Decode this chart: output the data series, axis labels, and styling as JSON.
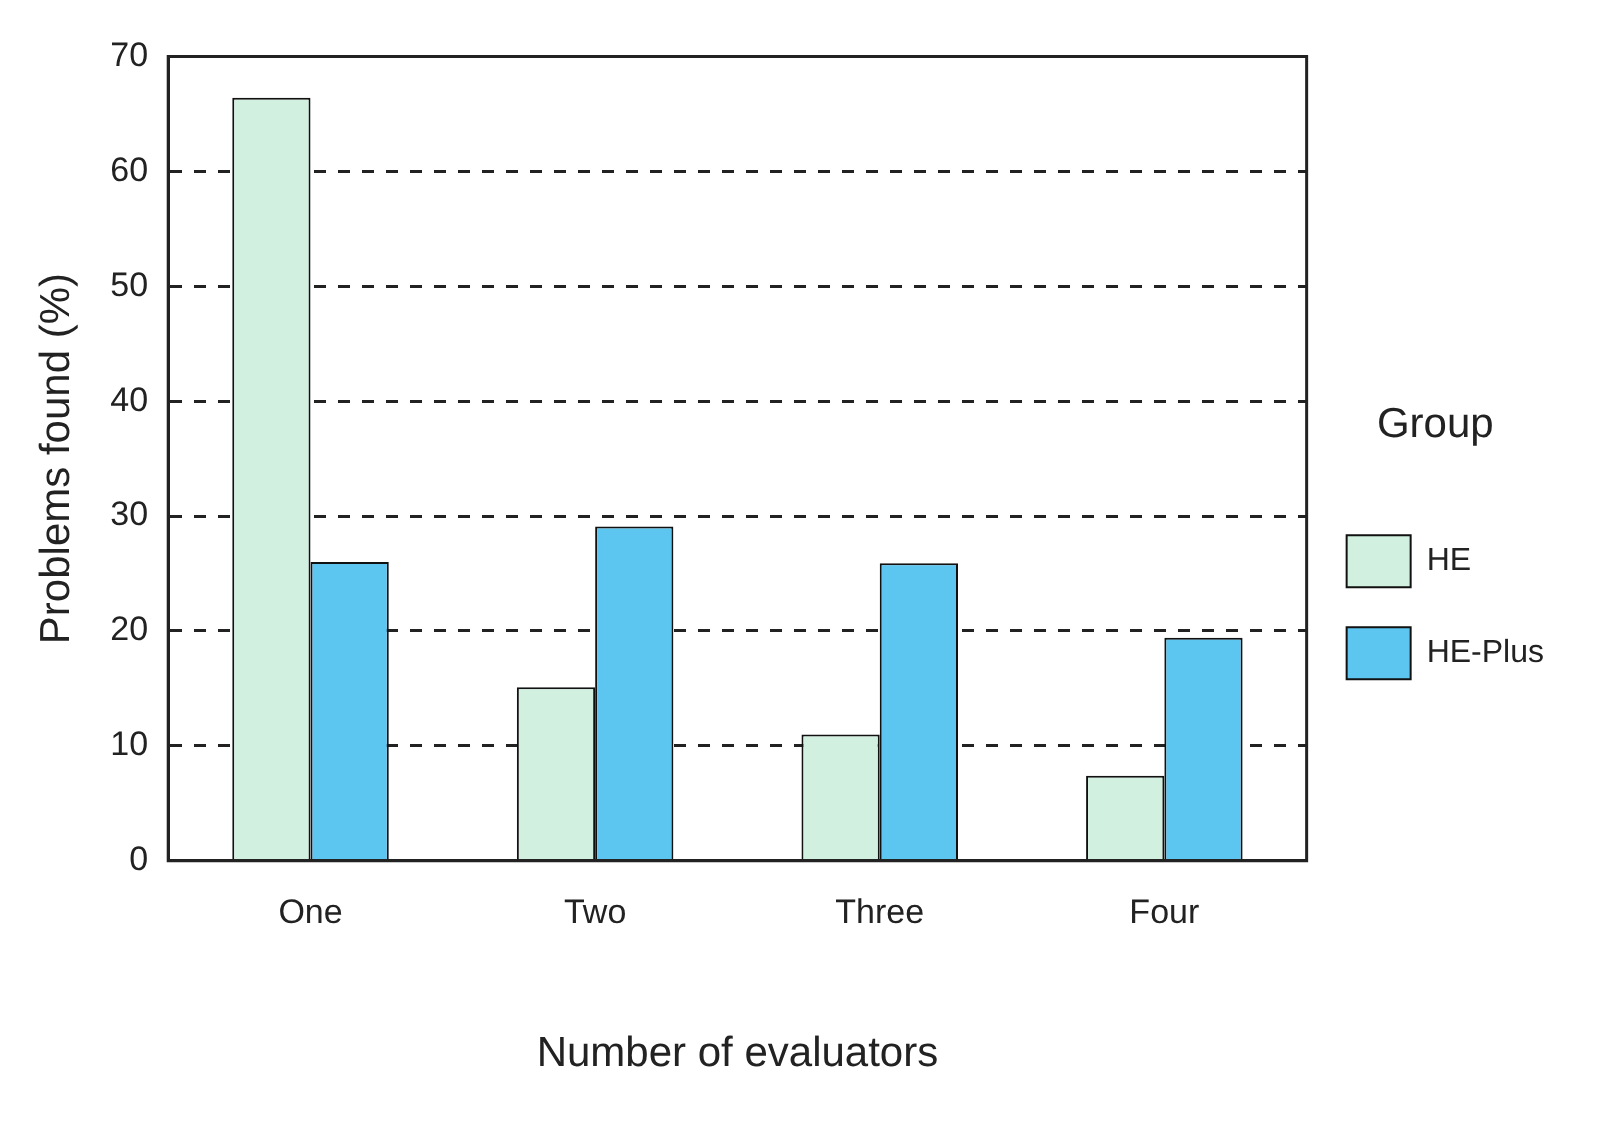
{
  "chart_data": {
    "type": "bar",
    "xlabel": "Number of evaluators",
    "ylabel": "Problems found (%)",
    "legend_title": "Group",
    "categories": [
      "One",
      "Two",
      "Three",
      "Four"
    ],
    "series": [
      {
        "name": "HE",
        "color": "#d2f0e0",
        "values": [
          66.4,
          15.1,
          11,
          7.4
        ]
      },
      {
        "name": "HE-Plus",
        "color": "#5cc6f0",
        "values": [
          26,
          29.1,
          25.9,
          19.4
        ]
      }
    ],
    "ylim": [
      0,
      70
    ],
    "yticks": [
      0,
      10,
      20,
      30,
      40,
      50,
      60,
      70
    ],
    "grid": "y",
    "legend": "right"
  }
}
